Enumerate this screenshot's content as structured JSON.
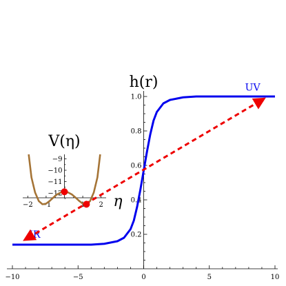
{
  "chart_data": [
    {
      "type": "line",
      "ylabel": "h(r)",
      "xlim": [
        -10,
        10
      ],
      "ylim": [
        0,
        1.0
      ],
      "x_ticks": [
        -10,
        -5,
        0,
        5,
        10
      ],
      "x_tick_labels": [
        "−10",
        "−5",
        "0",
        "5",
        "10"
      ],
      "y_ticks": [
        0.2,
        0.4,
        0.6,
        0.8,
        1.0
      ],
      "y_tick_labels": [
        "0.2",
        "0.4",
        "0.6",
        "0.8",
        "1.0"
      ],
      "grid": false,
      "series": [
        {
          "x": [
            -10,
            -8,
            -6,
            -4,
            -3,
            -2,
            -1.5,
            -1,
            -0.75,
            -0.5,
            -0.25,
            0,
            0.25,
            0.5,
            0.75,
            1,
            1.5,
            2,
            3,
            4,
            6,
            8,
            10
          ],
          "y": [
            0.14,
            0.14,
            0.14,
            0.14,
            0.145,
            0.16,
            0.18,
            0.23,
            0.28,
            0.36,
            0.46,
            0.57,
            0.68,
            0.78,
            0.86,
            0.91,
            0.96,
            0.98,
            0.995,
            1.0,
            1.0,
            1.0,
            1.0
          ],
          "color": "#0000ee"
        }
      ],
      "annotations": [
        {
          "text": "UV",
          "x": 8.3,
          "y": 1.035,
          "color": "#0000ee"
        },
        {
          "text": "IR",
          "x": -8.3,
          "y": 0.18,
          "color": "#0000ee"
        }
      ],
      "arrow": {
        "from": [
          -8.8,
          0.18
        ],
        "to": [
          8.9,
          0.975
        ],
        "color": "#ee0000",
        "style": "dashed",
        "double_headed": true
      }
    },
    {
      "type": "line",
      "title": "V(η)",
      "xlabel": "η",
      "xlim": [
        -2.2,
        2.2
      ],
      "ylim": [
        -13.1,
        -8.6
      ],
      "x_ticks": [
        -2,
        -1,
        1,
        2
      ],
      "x_tick_labels": [
        "−2",
        "−1",
        "1",
        "2"
      ],
      "y_ticks": [
        -9,
        -10,
        -11,
        -12
      ],
      "y_tick_labels": [
        "−9",
        "−10",
        "−11",
        "−12"
      ],
      "grid": false,
      "series": [
        {
          "x": [
            -1.95,
            -1.8,
            -1.6,
            -1.4,
            -1.2,
            -1.0,
            -0.8,
            -0.6,
            -0.4,
            -0.2,
            0,
            0.2,
            0.4,
            0.6,
            0.8,
            1.0,
            1.2,
            1.4,
            1.6,
            1.8,
            1.95
          ],
          "y": [
            -8.6,
            -10.63,
            -11.97,
            -12.72,
            -13.0,
            -12.95,
            -12.7,
            -12.4,
            -12.13,
            -11.96,
            -11.9,
            -11.96,
            -12.13,
            -12.4,
            -12.7,
            -12.95,
            -13.0,
            -12.72,
            -11.97,
            -10.63,
            -8.6
          ],
          "color": "#a57436"
        }
      ],
      "points": [
        {
          "x": 0,
          "y": -11.9,
          "color": "#ee0000"
        },
        {
          "x": 1.2,
          "y": -13.0,
          "color": "#ee0000"
        }
      ]
    }
  ]
}
